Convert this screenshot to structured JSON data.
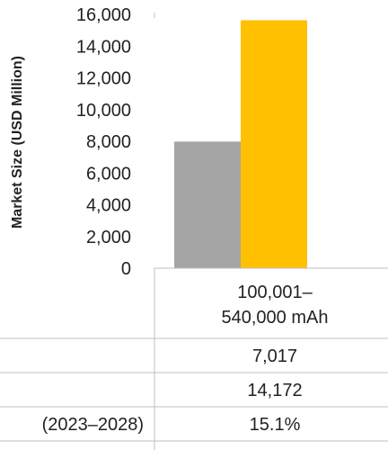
{
  "chart_data": {
    "type": "bar",
    "categories": [
      "100,001–540,000 mAh"
    ],
    "category_lines": [
      "100,001–",
      "540,000 mAh"
    ],
    "series": [
      {
        "values": [
          7982
        ],
        "color": "#a5a5a5"
      },
      {
        "values": [
          15632
        ],
        "color": "#ffc000"
      }
    ],
    "ylabel": "Market Size (USD Million)",
    "ylim": [
      0,
      16000
    ],
    "yticks": [
      0,
      2000,
      4000,
      6000,
      8000,
      10000,
      12000,
      14000,
      16000
    ],
    "ytick_labels": [
      "0",
      "2,000",
      "4,000",
      "6,000",
      "8,000",
      "10,000",
      "12,000",
      "14,000",
      "16,000"
    ],
    "grid": false
  },
  "table": {
    "rows": [
      {
        "label": "",
        "value": "7,017"
      },
      {
        "label": "",
        "value": "14,172"
      },
      {
        "label": "(2023–2028)",
        "value": "15.1%"
      }
    ]
  },
  "colors": {
    "axis": "#bfbfbf",
    "text": "#222222"
  }
}
